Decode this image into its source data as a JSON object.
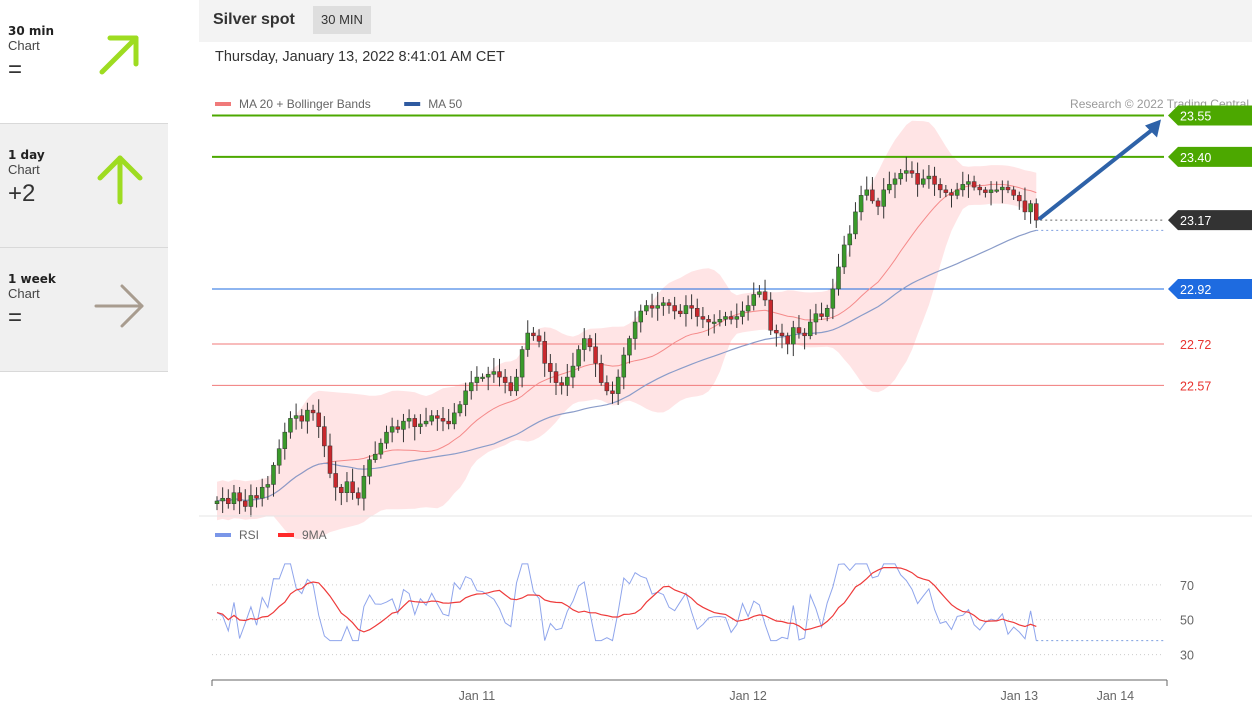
{
  "sidebar": {
    "items": [
      {
        "period": "30 min",
        "kind": "Chart",
        "score": "=",
        "direction": "up-right",
        "color": "#9edc21",
        "active": false
      },
      {
        "period": "1 day",
        "kind": "Chart",
        "score": "+2",
        "direction": "up",
        "color": "#9edc21",
        "active": true
      },
      {
        "period": "1 week",
        "kind": "Chart",
        "score": "=",
        "direction": "right",
        "color": "#a89c8f",
        "active": true
      }
    ]
  },
  "header": {
    "title": "Silver spot",
    "interval": "30 MIN",
    "timestamp": "Thursday, January 13, 2022 8:41:01 AM CET"
  },
  "chart_data": {
    "type": "candlestick",
    "copyright": "Research © 2022 Trading Central",
    "legend": [
      {
        "name": "MA 20 + Bollinger Bands",
        "color": "#f07a7a"
      },
      {
        "name": "MA 50",
        "color": "#2e5aa0"
      }
    ],
    "ylim": [
      22.11,
      23.65
    ],
    "x_ticks": [
      {
        "label": "Jan 11",
        "index": 46
      },
      {
        "label": "Jan 12",
        "index": 94
      },
      {
        "label": "Jan 13",
        "index": 142
      },
      {
        "label": "Jan 14",
        "index": 159
      }
    ],
    "levels": [
      {
        "value": 23.55,
        "label": "23.55",
        "color": "#4ca800",
        "kind": "resistance"
      },
      {
        "value": 23.4,
        "label": "23.40",
        "color": "#4ca800",
        "kind": "resistance"
      },
      {
        "value": 23.17,
        "label": "23.17",
        "color": "#333333",
        "kind": "last"
      },
      {
        "value": 22.92,
        "label": "22.92",
        "color": "#1e6be0",
        "kind": "pivot"
      },
      {
        "value": 22.72,
        "label": "22.72",
        "color": "#f07a7a",
        "kind": "support"
      },
      {
        "value": 22.57,
        "label": "22.57",
        "color": "#f07a7a",
        "kind": "support"
      }
    ],
    "closes": [
      22.15,
      22.16,
      22.14,
      22.18,
      22.15,
      22.13,
      22.17,
      22.16,
      22.2,
      22.21,
      22.28,
      22.34,
      22.4,
      22.45,
      22.46,
      22.44,
      22.48,
      22.47,
      22.42,
      22.35,
      22.25,
      22.2,
      22.18,
      22.22,
      22.18,
      22.16,
      22.24,
      22.3,
      22.32,
      22.36,
      22.4,
      22.42,
      22.41,
      22.44,
      22.45,
      22.42,
      22.43,
      22.44,
      22.46,
      22.45,
      22.44,
      22.43,
      22.47,
      22.5,
      22.55,
      22.58,
      22.6,
      22.6,
      22.61,
      22.62,
      22.6,
      22.58,
      22.55,
      22.6,
      22.7,
      22.76,
      22.75,
      22.73,
      22.65,
      22.62,
      22.58,
      22.57,
      22.6,
      22.64,
      22.7,
      22.74,
      22.71,
      22.65,
      22.58,
      22.55,
      22.54,
      22.6,
      22.68,
      22.74,
      22.8,
      22.84,
      22.86,
      22.85,
      22.86,
      22.87,
      22.86,
      22.84,
      22.83,
      22.86,
      22.85,
      22.82,
      22.81,
      22.8,
      22.8,
      22.81,
      22.82,
      22.81,
      22.82,
      22.84,
      22.86,
      22.9,
      22.91,
      22.88,
      22.77,
      22.76,
      22.75,
      22.72,
      22.78,
      22.76,
      22.75,
      22.8,
      22.83,
      22.82,
      22.85,
      22.92,
      23.0,
      23.08,
      23.12,
      23.2,
      23.26,
      23.28,
      23.24,
      23.22,
      23.28,
      23.3,
      23.32,
      23.34,
      23.35,
      23.34,
      23.3,
      23.32,
      23.33,
      23.3,
      23.28,
      23.27,
      23.26,
      23.28,
      23.3,
      23.31,
      23.29,
      23.28,
      23.27,
      23.28,
      23.28,
      23.29,
      23.28,
      23.26,
      23.24,
      23.2,
      23.23,
      23.17
    ],
    "rsi": {
      "ylim": [
        20,
        90
      ],
      "ticks": [
        70,
        50,
        30
      ],
      "legend": [
        {
          "name": "RSI",
          "color": "#7a96e8"
        },
        {
          "name": "9MA",
          "color": "#ff2a2a"
        }
      ]
    }
  }
}
